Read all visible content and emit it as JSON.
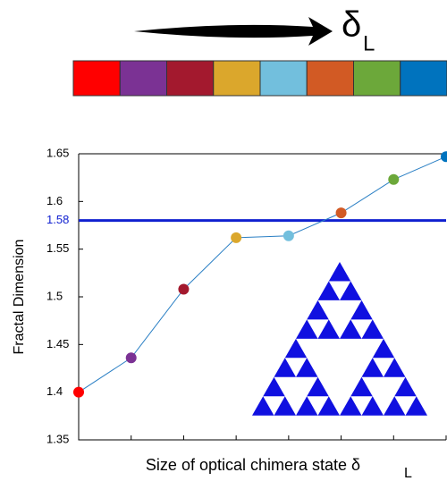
{
  "chart_data": {
    "type": "line",
    "scale_label": "δ",
    "scale_label_sub": "L",
    "xlabel": "Size of optical chimera state δ",
    "xlabel_sub": "L",
    "ylabel": "Fractal Dimension",
    "categories": [
      null,
      null,
      null,
      null,
      null,
      null,
      null,
      null
    ],
    "series": [
      {
        "line_color": "#2a7fc4",
        "colors": [
          "#ff0000",
          "#7b3294",
          "#a3192e",
          "#dba72c",
          "#72bfdd",
          "#d25a24",
          "#6ca83a",
          "#0073be"
        ],
        "values": [
          1.4,
          1.436,
          1.508,
          1.562,
          1.564,
          1.588,
          1.623,
          1.647
        ]
      }
    ],
    "ylim": [
      1.35,
      1.65
    ],
    "yticks": [
      1.35,
      1.4,
      1.45,
      1.5,
      1.55,
      1.6,
      1.65
    ],
    "hline": 1.58,
    "hline_color": "#1020d0",
    "inset_color": "#1010e0"
  }
}
